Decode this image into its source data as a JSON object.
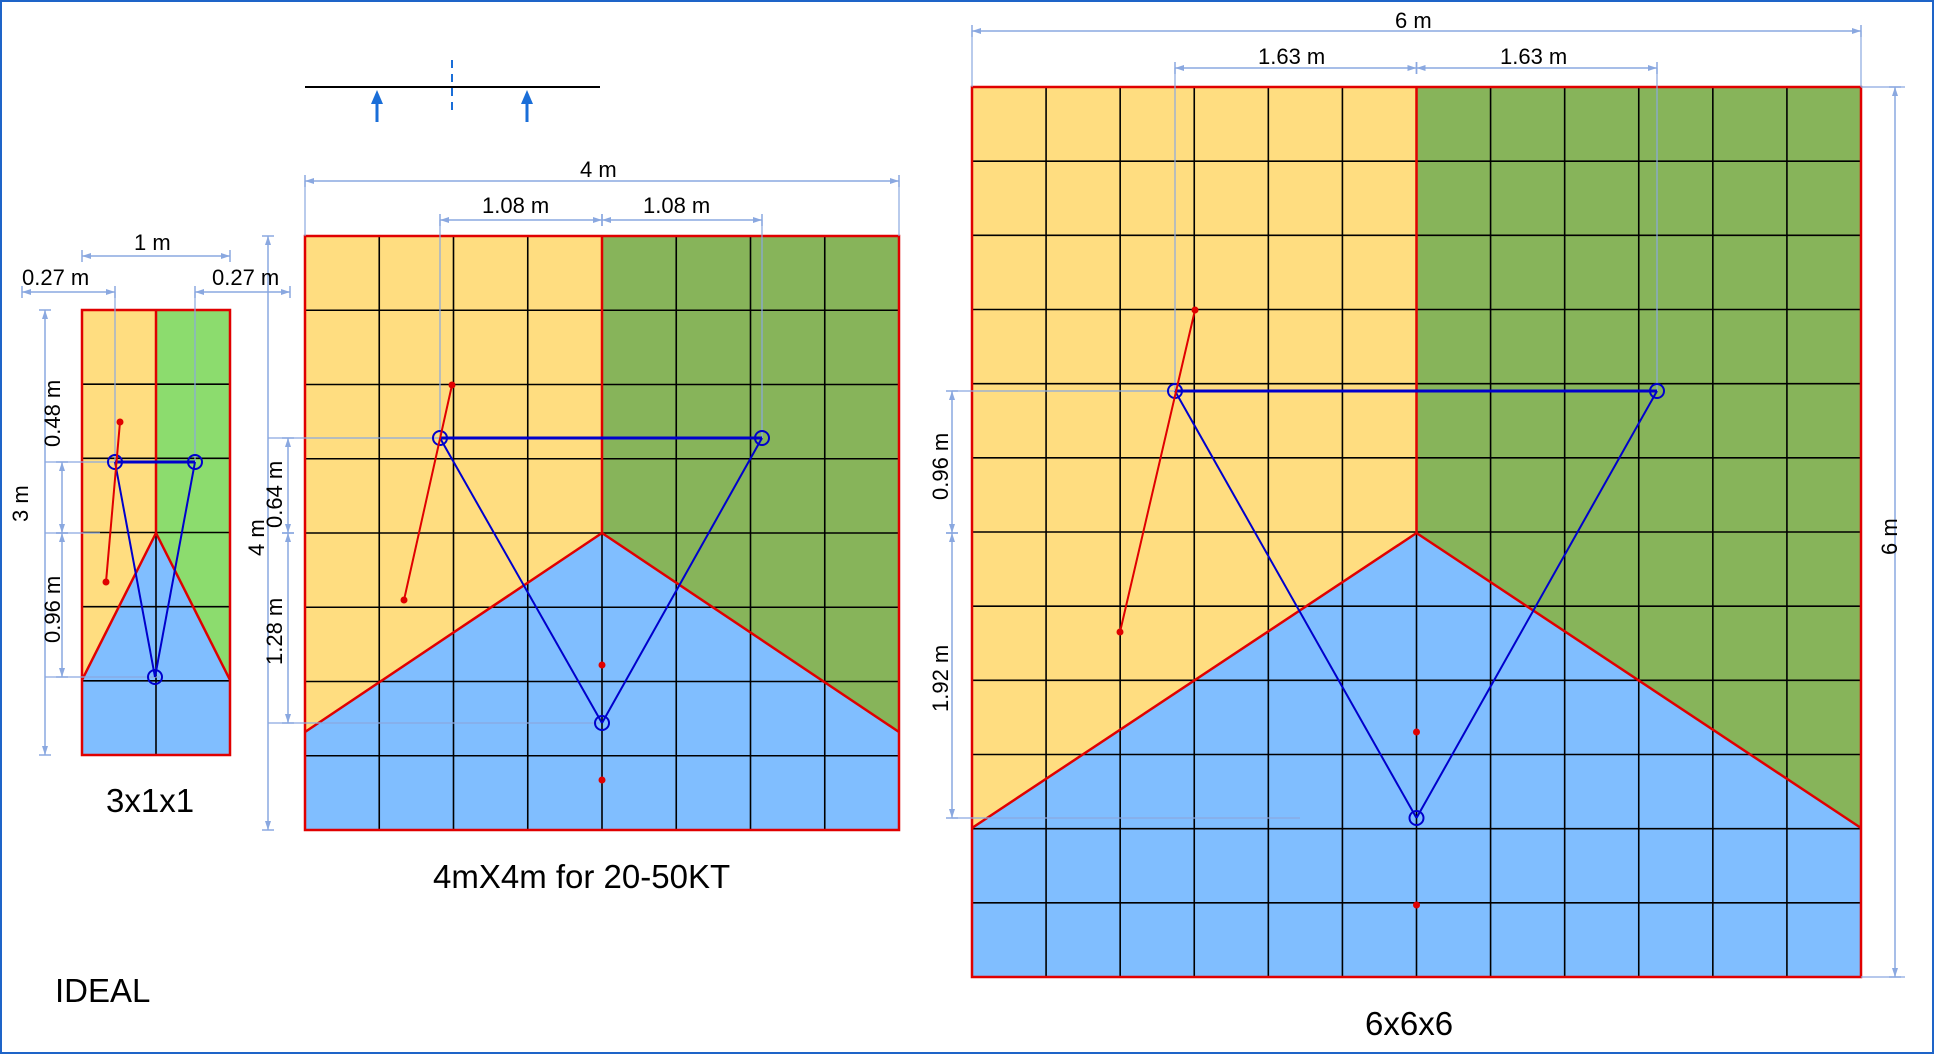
{
  "colors": {
    "yellow": "#FFDD80",
    "green_small": "#8CDC6E",
    "green": "#87B45A",
    "blue": "#80BEFF",
    "edge": "#E00000",
    "grid": "#000000",
    "dimension": "#8AA8E0",
    "bridle": "#0000CC",
    "frame": "#1E64C8",
    "arrow": "#1A6ED8"
  },
  "diagrams": {
    "small": {
      "title": "3x1x1",
      "dims": {
        "width": "1 m",
        "left_offset": "0.27 m",
        "right_offset": "0.27 m",
        "height": "3 m",
        "upper": "0.48 m",
        "lower": "0.96 m"
      }
    },
    "medium": {
      "title": "4mX4m for 20-50KT",
      "dims": {
        "width": "4 m",
        "left_half": "1.08 m",
        "right_half": "1.08 m",
        "height": "4 m",
        "upper": "0.64 m",
        "lower": "1.28 m"
      }
    },
    "large": {
      "title": "6x6x6",
      "dims": {
        "width": "6 m",
        "left_half": "1.63 m",
        "right_half": "1.63 m",
        "height": "6 m",
        "upper": "0.96 m",
        "lower": "1.92 m"
      }
    }
  },
  "notes": {
    "ideal": "IDEAL"
  },
  "icons": [
    "wind-arrow-icon",
    "wind-arrow-icon"
  ]
}
